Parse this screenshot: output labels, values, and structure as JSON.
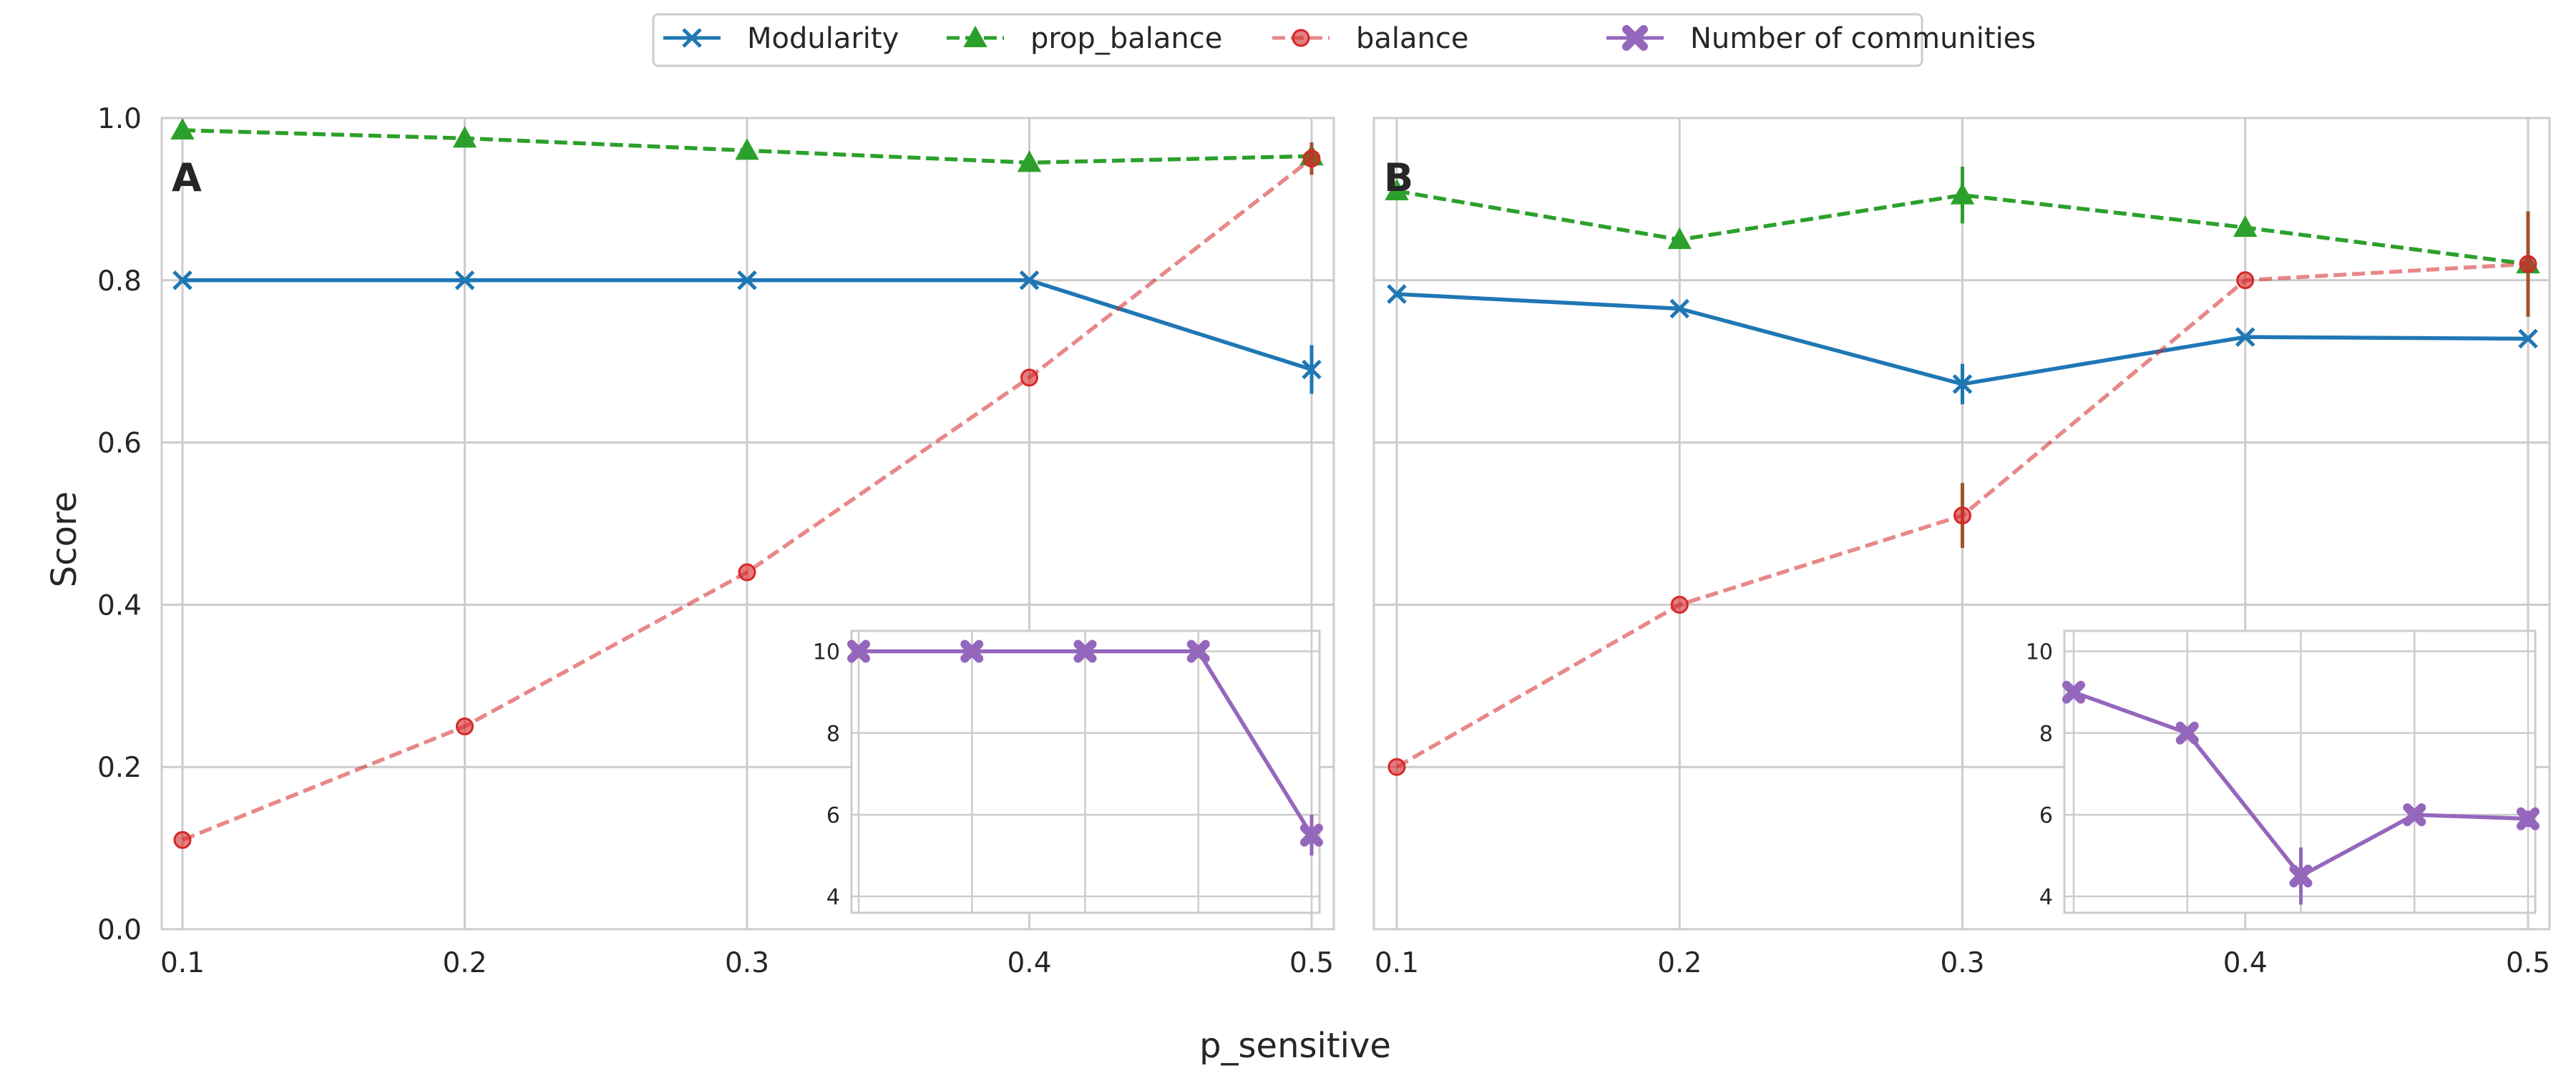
{
  "chart_data": {
    "type": "line",
    "xlabel": "p_sensitive",
    "ylabel": "Score",
    "x": [
      0.1,
      0.2,
      0.3,
      0.4,
      0.5
    ],
    "xticks": [
      "0.1",
      "0.2",
      "0.3",
      "0.4",
      "0.5"
    ],
    "ylim": [
      0,
      1
    ],
    "yticks": [
      "0.0",
      "0.2",
      "0.4",
      "0.6",
      "0.8",
      "1.0"
    ],
    "legend": {
      "placement": "top-center",
      "entries": [
        {
          "name": "Modularity",
          "color": "#1f77b4",
          "marker": "x",
          "dash": "solid"
        },
        {
          "name": "prop_balance",
          "color": "#2ca02c",
          "marker": "triangle",
          "dash": "dashed"
        },
        {
          "name": "balance",
          "color": "#d62728",
          "marker": "circle",
          "dash": "dashed"
        },
        {
          "name": "Number of communities",
          "color": "#9467bd",
          "marker": "filled-x",
          "dash": "solid"
        }
      ]
    },
    "panels": [
      {
        "label": "A",
        "series": [
          {
            "name": "Modularity",
            "values": [
              0.8,
              0.8,
              0.8,
              0.8,
              0.69
            ],
            "errors": [
              0,
              0,
              0,
              0,
              0.03
            ]
          },
          {
            "name": "prop_balance",
            "values": [
              0.985,
              0.975,
              0.96,
              0.945,
              0.953
            ],
            "errors": [
              0,
              0,
              0,
              0,
              0
            ]
          },
          {
            "name": "balance",
            "values": [
              0.11,
              0.25,
              0.44,
              0.68,
              0.95
            ],
            "errors": [
              0,
              0,
              0,
              0,
              0.02
            ]
          }
        ],
        "inset": {
          "series": "Number of communities",
          "values": [
            10,
            10,
            10,
            10,
            5.5
          ],
          "errors": [
            0,
            0,
            0,
            0,
            0.5
          ],
          "ylim": [
            3.6,
            10.5
          ],
          "yticks": [
            "4",
            "6",
            "8",
            "10"
          ]
        }
      },
      {
        "label": "B",
        "series": [
          {
            "name": "Modularity",
            "values": [
              0.783,
              0.765,
              0.672,
              0.73,
              0.728
            ],
            "errors": [
              0,
              0,
              0.025,
              0,
              0
            ]
          },
          {
            "name": "prop_balance",
            "values": [
              0.91,
              0.85,
              0.905,
              0.865,
              0.82
            ],
            "errors": [
              0,
              0,
              0.035,
              0,
              0
            ]
          },
          {
            "name": "balance",
            "values": [
              0.2,
              0.4,
              0.51,
              0.8,
              0.82
            ],
            "errors": [
              0,
              0,
              0.04,
              0,
              0.065
            ]
          }
        ],
        "inset": {
          "series": "Number of communities",
          "values": [
            9,
            8,
            4.5,
            6,
            5.9
          ],
          "errors": [
            0,
            0,
            0.7,
            0,
            0.2
          ],
          "ylim": [
            3.6,
            10.5
          ],
          "yticks": [
            "4",
            "6",
            "8",
            "10"
          ]
        }
      }
    ]
  }
}
